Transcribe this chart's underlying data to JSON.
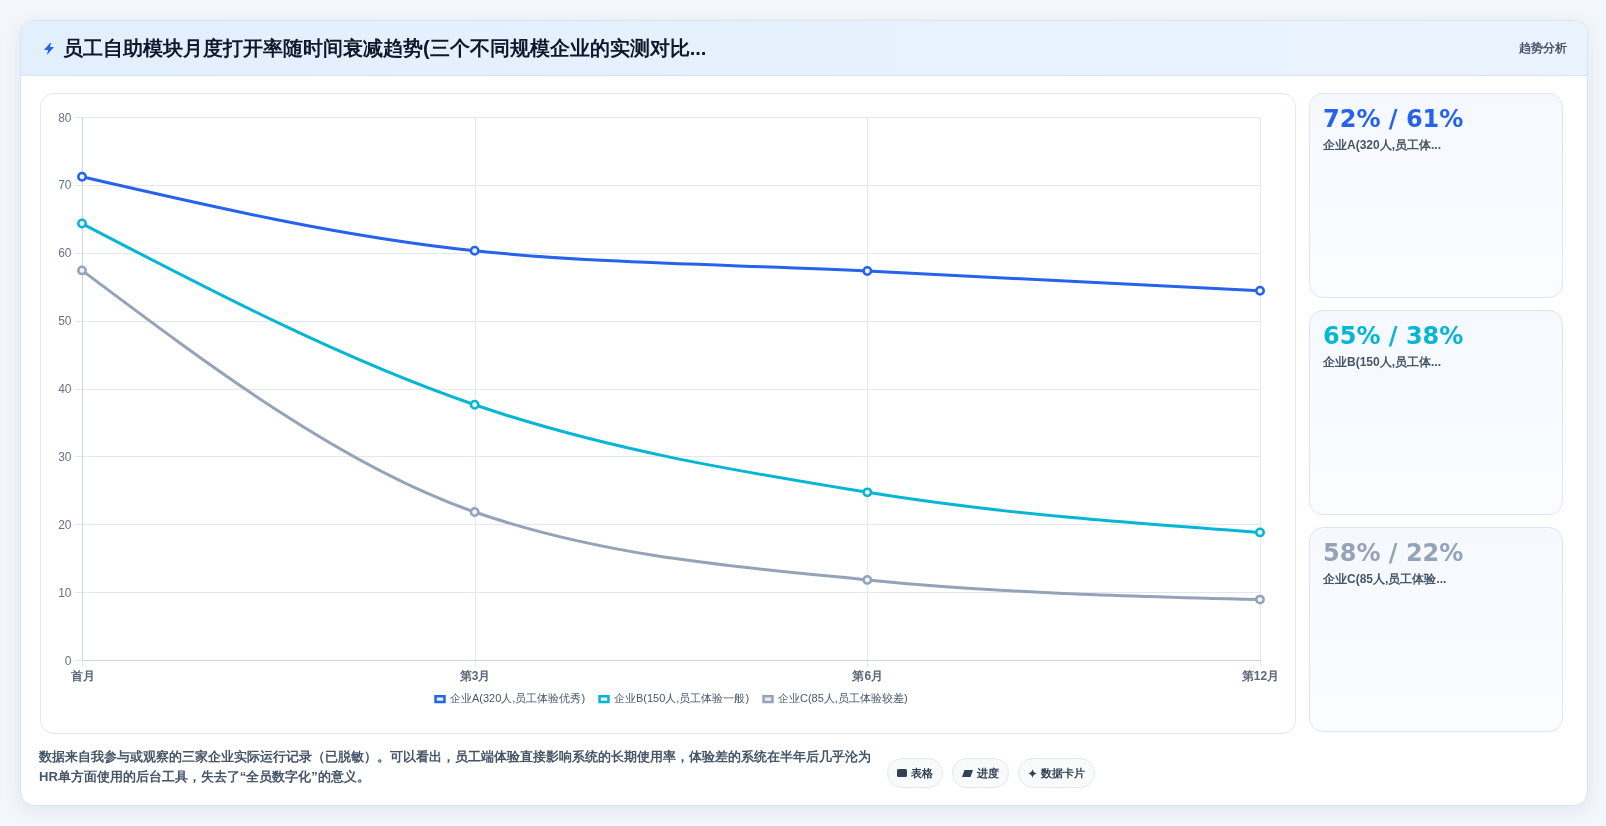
{
  "chart_data": [
    {
      "type": "other",
      "title": "员工自助模块月度打开率随时间衰减趋势(三个不同规模企业的实测对比...",
      "subtitle": "趋势分析"
    },
    {
      "type": "line",
      "categories": [
        "首月",
        "第3月",
        "第6月",
        "第12月"
      ],
      "series": [
        {
          "name": "企业A(320人,员工体验优秀)",
          "color": "#2563eb",
          "values": [
            71.2,
            60.3,
            57.3,
            54.4
          ]
        },
        {
          "name": "企业B(150人,员工体验一般)",
          "color": "#06b6d4",
          "values": [
            64.3,
            37.6,
            24.7,
            18.8
          ]
        },
        {
          "name": "企业C(85人,员工体验较差)",
          "color": "#94a3b8",
          "values": [
            57.4,
            21.8,
            11.8,
            8.9
          ]
        }
      ],
      "ylim": [
        0,
        80
      ],
      "yticks": [
        0,
        10,
        20,
        30,
        40,
        50,
        60,
        70,
        80
      ],
      "grid": true,
      "legend": "bottom",
      "marker": "circle",
      "annotations": [
        "数据来自我参与或观察的三家企业实际运行记录（已脱敏）。可以看出，员工端体验直接影响系统的长期使用率，体验差的系统在半年后几乎沦为HR单方面使用的后台工具，失去了“全员数字化”的意义。",
        "表格",
        "进度",
        "数据卡片"
      ]
    },
    {
      "type": "other",
      "title": "72% / 61%",
      "subtitle": "企业A(320人,员工体..."
    },
    {
      "type": "other",
      "title": "65% / 38%",
      "subtitle": "企业B(150人,员工体..."
    },
    {
      "type": "other",
      "title": "58% / 22%",
      "subtitle": "企业C(85人,员工体验..."
    }
  ]
}
